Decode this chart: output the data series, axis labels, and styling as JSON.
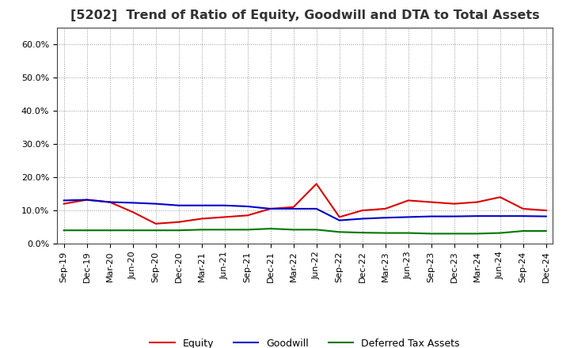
{
  "title": "[5202]  Trend of Ratio of Equity, Goodwill and DTA to Total Assets",
  "labels": [
    "Sep-19",
    "Dec-19",
    "Mar-20",
    "Jun-20",
    "Sep-20",
    "Dec-20",
    "Mar-21",
    "Jun-21",
    "Sep-21",
    "Dec-21",
    "Mar-22",
    "Jun-22",
    "Sep-22",
    "Dec-22",
    "Mar-23",
    "Jun-23",
    "Sep-23",
    "Dec-23",
    "Mar-24",
    "Jun-24",
    "Sep-24",
    "Dec-24"
  ],
  "equity": [
    12.0,
    13.2,
    12.5,
    9.5,
    6.0,
    6.5,
    7.5,
    8.0,
    8.5,
    10.5,
    11.0,
    18.0,
    8.0,
    10.0,
    10.5,
    13.0,
    12.5,
    12.0,
    12.5,
    14.0,
    10.5,
    10.0
  ],
  "goodwill": [
    13.0,
    13.2,
    12.5,
    12.3,
    12.0,
    11.5,
    11.5,
    11.5,
    11.2,
    10.5,
    10.5,
    10.5,
    7.0,
    7.5,
    7.8,
    8.0,
    8.2,
    8.2,
    8.3,
    8.3,
    8.3,
    8.2
  ],
  "dta": [
    4.0,
    4.0,
    4.0,
    4.0,
    4.0,
    4.0,
    4.2,
    4.2,
    4.2,
    4.5,
    4.2,
    4.2,
    3.5,
    3.3,
    3.2,
    3.2,
    3.0,
    3.0,
    3.0,
    3.2,
    3.8,
    3.8
  ],
  "equity_color": "#dd0000",
  "goodwill_color": "#0000cc",
  "dta_color": "#007700",
  "ylim": [
    0,
    65
  ],
  "yticks": [
    0.0,
    10.0,
    20.0,
    30.0,
    40.0,
    50.0,
    60.0
  ],
  "ytick_labels": [
    "0.0%",
    "10.0%",
    "20.0%",
    "30.0%",
    "40.0%",
    "50.0%",
    "60.0%"
  ],
  "bg_color": "#ffffff",
  "grid_color": "#999999",
  "legend_equity": "Equity",
  "legend_goodwill": "Goodwill",
  "legend_dta": "Deferred Tax Assets",
  "title_fontsize": 11.5,
  "tick_fontsize": 8,
  "legend_fontsize": 9,
  "line_width": 1.5
}
